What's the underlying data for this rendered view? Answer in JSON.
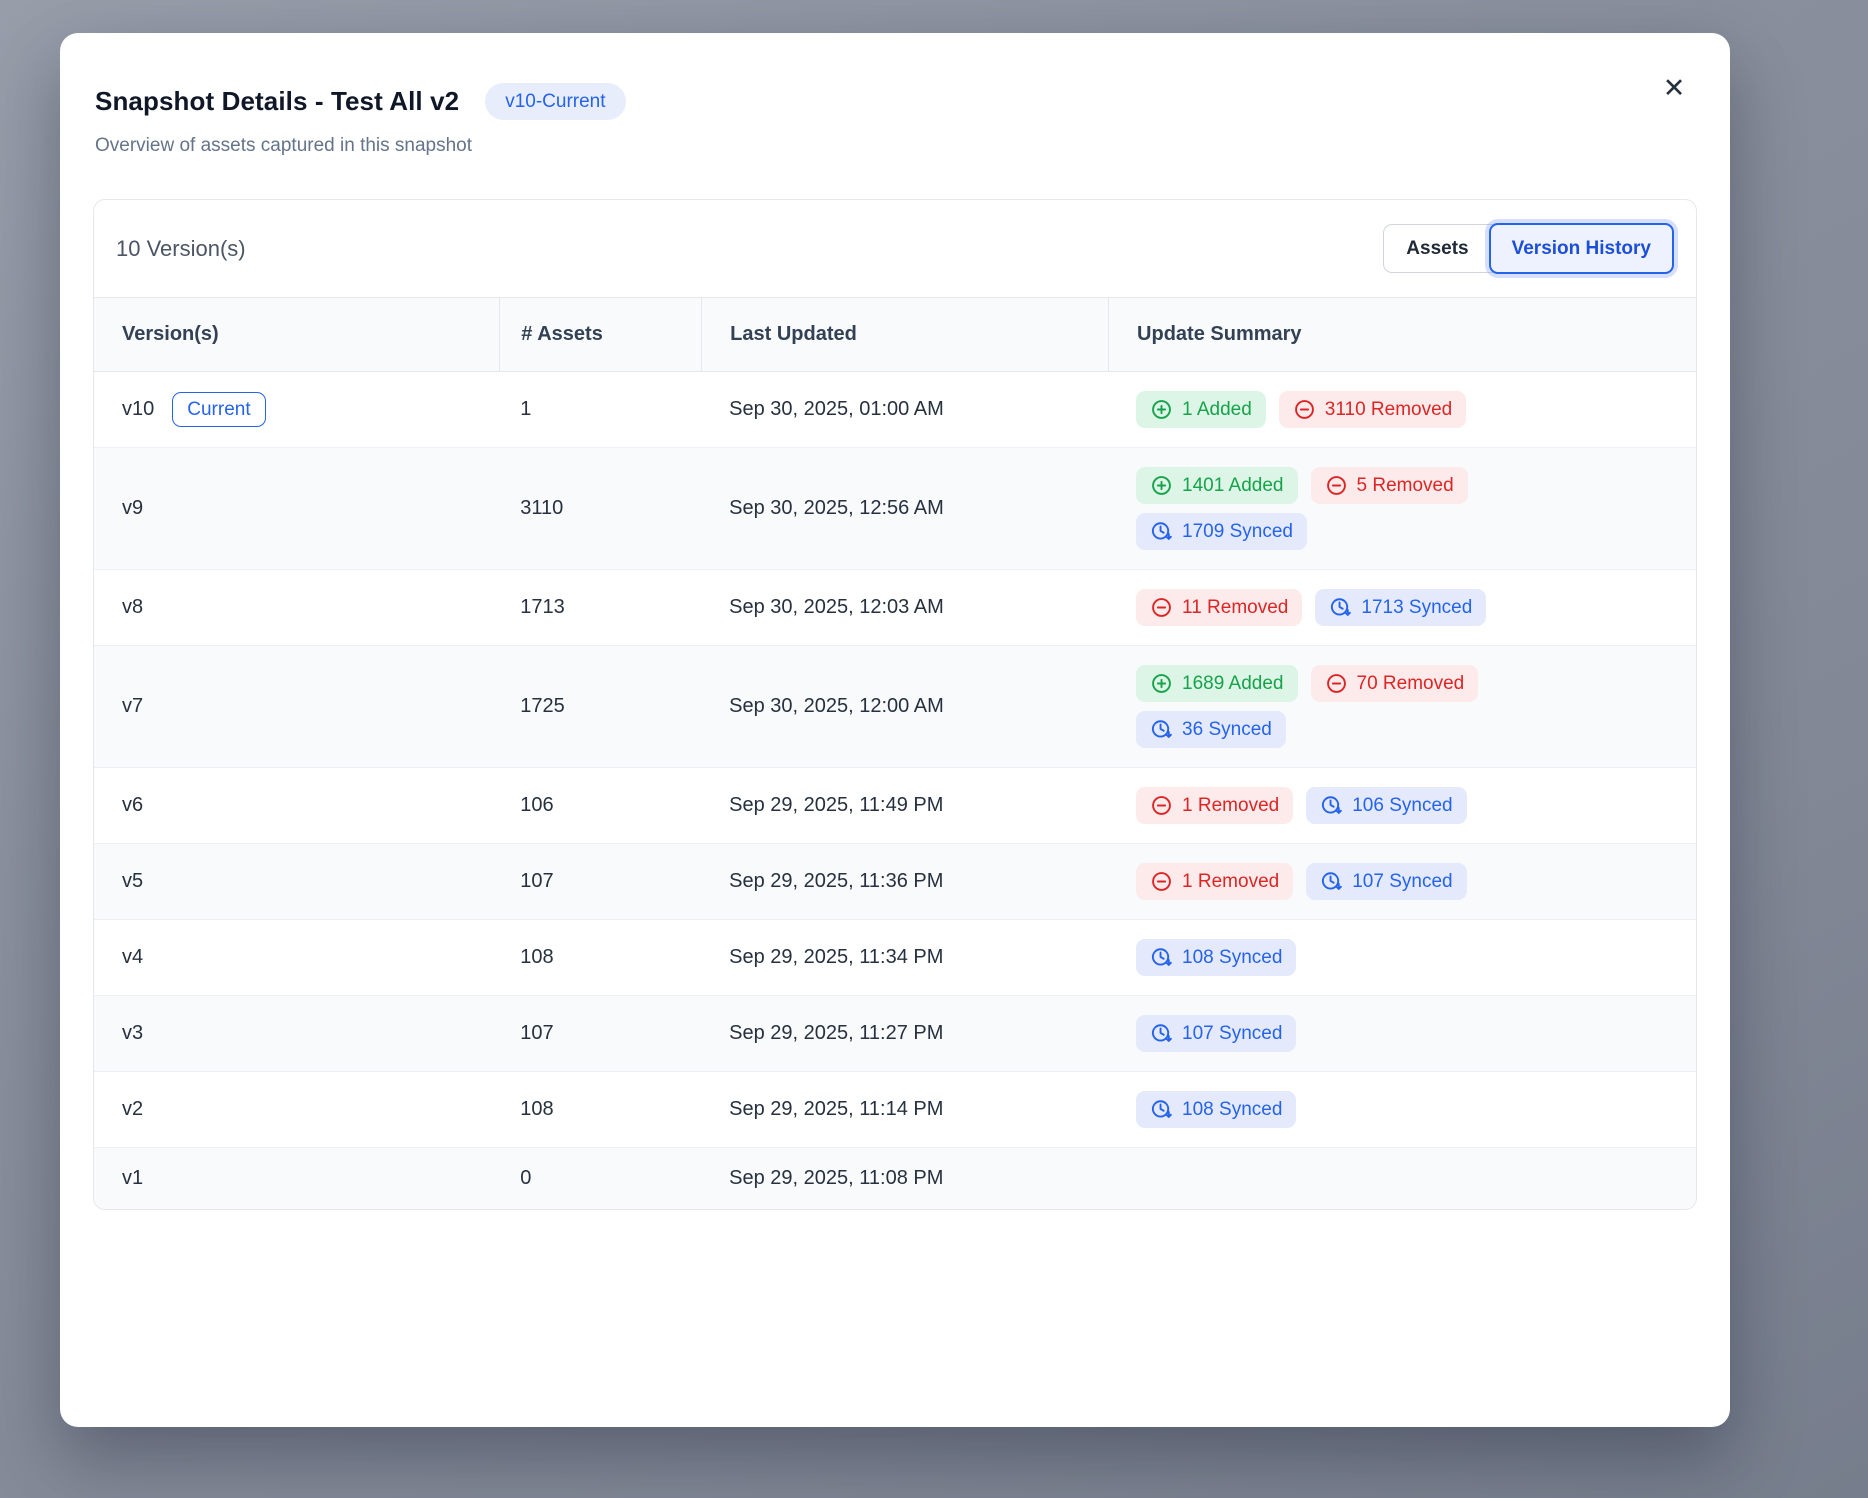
{
  "modal": {
    "title": "Snapshot Details - Test All v2",
    "version_pill": "v10-Current",
    "subtitle": "Overview of assets captured in this snapshot",
    "close_icon": "✕"
  },
  "toolbar": {
    "count_label": "10 Version(s)",
    "assets_button": "Assets",
    "version_history_button": "Version History"
  },
  "table": {
    "columns": [
      "Version(s)",
      "# Assets",
      "Last Updated",
      "Update Summary"
    ],
    "current_chip_label": "Current",
    "rows": [
      {
        "version": "v10",
        "current": true,
        "assets": "1",
        "updated": "Sep 30, 2025, 01:00 AM",
        "badges": [
          {
            "type": "added",
            "label": "1 Added"
          },
          {
            "type": "removed",
            "label": "3110 Removed"
          }
        ]
      },
      {
        "version": "v9",
        "current": false,
        "assets": "3110",
        "updated": "Sep 30, 2025, 12:56 AM",
        "badges": [
          {
            "type": "added",
            "label": "1401 Added"
          },
          {
            "type": "removed",
            "label": "5 Removed"
          },
          {
            "type": "synced",
            "label": "1709 Synced"
          }
        ]
      },
      {
        "version": "v8",
        "current": false,
        "assets": "1713",
        "updated": "Sep 30, 2025, 12:03 AM",
        "badges": [
          {
            "type": "removed",
            "label": "11 Removed"
          },
          {
            "type": "synced",
            "label": "1713 Synced"
          }
        ]
      },
      {
        "version": "v7",
        "current": false,
        "assets": "1725",
        "updated": "Sep 30, 2025, 12:00 AM",
        "badges": [
          {
            "type": "added",
            "label": "1689 Added"
          },
          {
            "type": "removed",
            "label": "70 Removed"
          },
          {
            "type": "synced",
            "label": "36 Synced"
          }
        ]
      },
      {
        "version": "v6",
        "current": false,
        "assets": "106",
        "updated": "Sep 29, 2025, 11:49 PM",
        "badges": [
          {
            "type": "removed",
            "label": "1 Removed"
          },
          {
            "type": "synced",
            "label": "106 Synced"
          }
        ]
      },
      {
        "version": "v5",
        "current": false,
        "assets": "107",
        "updated": "Sep 29, 2025, 11:36 PM",
        "badges": [
          {
            "type": "removed",
            "label": "1 Removed"
          },
          {
            "type": "synced",
            "label": "107 Synced"
          }
        ]
      },
      {
        "version": "v4",
        "current": false,
        "assets": "108",
        "updated": "Sep 29, 2025, 11:34 PM",
        "badges": [
          {
            "type": "synced",
            "label": "108 Synced"
          }
        ]
      },
      {
        "version": "v3",
        "current": false,
        "assets": "107",
        "updated": "Sep 29, 2025, 11:27 PM",
        "badges": [
          {
            "type": "synced",
            "label": "107 Synced"
          }
        ]
      },
      {
        "version": "v2",
        "current": false,
        "assets": "108",
        "updated": "Sep 29, 2025, 11:14 PM",
        "badges": [
          {
            "type": "synced",
            "label": "108 Synced"
          }
        ]
      },
      {
        "version": "v1",
        "current": false,
        "assets": "0",
        "updated": "Sep 29, 2025, 11:08 PM",
        "badges": []
      }
    ]
  },
  "colors": {
    "accent_blue": "#2563eb",
    "added_green": "#16a34a",
    "removed_red": "#dc2626",
    "pill_bg": "#e8edfc",
    "added_bg": "#ddf5e7",
    "removed_bg": "#fdeaea",
    "synced_bg": "#e4eafc",
    "header_bg": "#f8fafc"
  }
}
